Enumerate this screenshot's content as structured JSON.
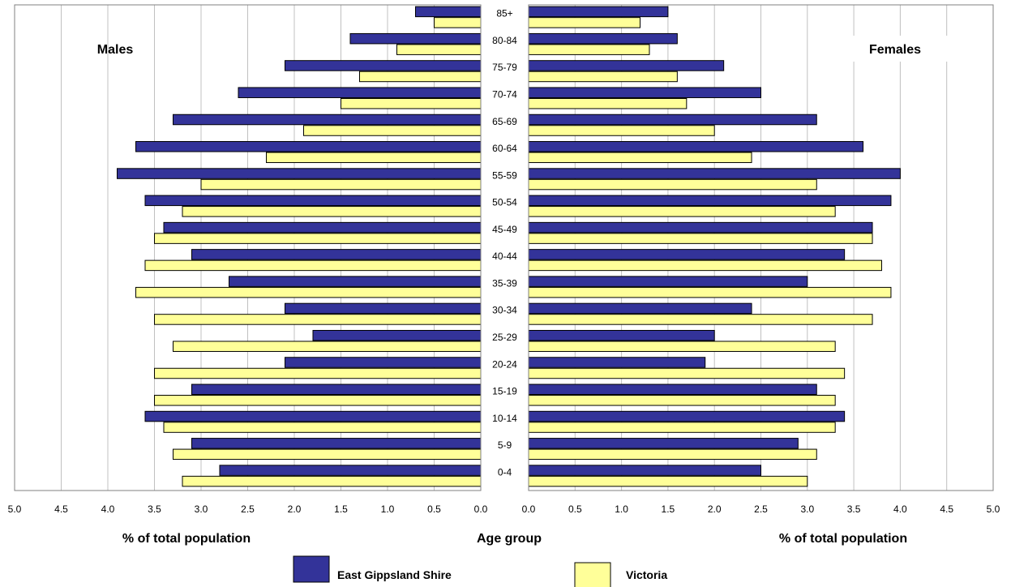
{
  "chart_data": {
    "type": "bar",
    "orientation": "horizontal",
    "subtype": "population-pyramid",
    "side_titles": {
      "left": "Males",
      "right": "Females"
    },
    "xlabel_left": "% of total population",
    "xlabel_center": "Age group",
    "xlabel_right": "% of total population",
    "xlim": [
      0,
      5
    ],
    "x_ticks": [
      "0.0",
      "0.5",
      "1.0",
      "1.5",
      "2.0",
      "2.5",
      "3.0",
      "3.5",
      "4.0",
      "4.5",
      "5.0"
    ],
    "grid": true,
    "legend_position": "bottom",
    "categories": [
      "85+",
      "80-84",
      "75-79",
      "70-74",
      "65-69",
      "60-64",
      "55-59",
      "50-54",
      "45-49",
      "40-44",
      "35-39",
      "30-34",
      "25-29",
      "20-24",
      "15-19",
      "10-14",
      "5-9",
      "0-4"
    ],
    "series": [
      {
        "name": "East Gippsland Shire",
        "color": "#333399",
        "males": [
          0.7,
          1.4,
          2.1,
          2.6,
          3.3,
          3.7,
          3.9,
          3.6,
          3.4,
          3.1,
          2.7,
          2.1,
          1.8,
          2.1,
          3.1,
          3.6,
          3.1,
          2.8
        ],
        "females": [
          1.5,
          1.6,
          2.1,
          2.5,
          3.1,
          3.6,
          4.0,
          3.9,
          3.7,
          3.4,
          3.0,
          2.4,
          2.0,
          1.9,
          3.1,
          3.4,
          2.9,
          2.5
        ]
      },
      {
        "name": "Victoria",
        "color": "#FFFF99",
        "males": [
          0.5,
          0.9,
          1.3,
          1.5,
          1.9,
          2.3,
          3.0,
          3.2,
          3.5,
          3.6,
          3.7,
          3.5,
          3.3,
          3.5,
          3.5,
          3.4,
          3.3,
          3.2
        ],
        "females": [
          1.2,
          1.3,
          1.6,
          1.7,
          2.0,
          2.4,
          3.1,
          3.3,
          3.7,
          3.8,
          3.9,
          3.7,
          3.3,
          3.4,
          3.3,
          3.3,
          3.1,
          3.0
        ]
      }
    ]
  }
}
